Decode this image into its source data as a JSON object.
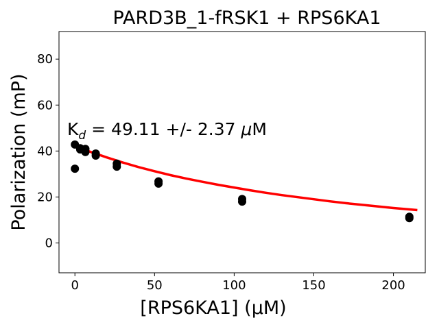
{
  "chart_data": {
    "type": "scatter",
    "title": "PARD3B_1-fRSK1 + RPS6KA1",
    "xlabel": "[RPS6KA1] (μM)",
    "ylabel": "Polarization (mP)",
    "xlim": [
      -10,
      220
    ],
    "ylim": [
      -13,
      92
    ],
    "xticks": [
      0,
      50,
      100,
      150,
      200
    ],
    "yticks": [
      0,
      20,
      40,
      60,
      80
    ],
    "grid": false,
    "points": {
      "x": [
        0,
        0,
        3.3,
        3.3,
        6.6,
        6.6,
        13.1,
        13.1,
        26.3,
        26.3,
        52.5,
        52.5,
        105,
        105,
        210,
        210
      ],
      "y": [
        32.3,
        42.8,
        41.2,
        40.7,
        40.9,
        39.6,
        38.9,
        38.0,
        34.5,
        33.2,
        26.8,
        25.8,
        19.1,
        18.0,
        11.4,
        10.8
      ],
      "color": "#000000"
    },
    "fit": {
      "color": "#ff0000",
      "x": [
        0,
        5,
        10,
        20,
        30,
        40,
        50,
        60,
        70,
        80,
        90,
        100,
        110,
        120,
        130,
        140,
        150,
        160,
        170,
        180,
        190,
        200,
        210,
        215
      ],
      "y": [
        42.2,
        40.9,
        39.6,
        37.2,
        35.0,
        33.0,
        31.2,
        29.5,
        28.0,
        26.6,
        25.3,
        24.1,
        22.9,
        21.8,
        20.8,
        19.9,
        19.0,
        18.1,
        17.3,
        16.6,
        15.9,
        15.2,
        14.6,
        14.3
      ]
    },
    "annotation": {
      "k": "K",
      "sub": "d",
      "value": " = 49.11 +/- 2.37 ",
      "mu": "μ",
      "unit": "M"
    }
  }
}
